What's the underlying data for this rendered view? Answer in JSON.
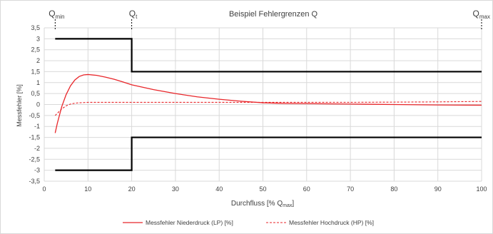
{
  "chart_data": {
    "type": "line",
    "title": "Beispiel Fehlergrenzen Q",
    "xlabel": {
      "main": "Durchfluss [% Q",
      "sub": "max",
      "end": "]"
    },
    "ylabel": "Messfehler [%]",
    "xlim": [
      0,
      100
    ],
    "ylim": [
      -3.5,
      3.5
    ],
    "xticks": [
      0,
      10,
      20,
      30,
      40,
      50,
      60,
      70,
      80,
      90,
      100
    ],
    "yticks": [
      3.5,
      3,
      2.5,
      2,
      1.5,
      1,
      0.5,
      0,
      -0.5,
      -1,
      -1.5,
      -2,
      -2.5,
      -3,
      -3.5
    ],
    "ytick_labels": [
      "3,5",
      "3",
      "2,5",
      "2",
      "1,5",
      "1",
      "0,5",
      "0",
      "-0,5",
      "-1",
      "-1,5",
      "-2",
      "-2,5",
      "-3",
      "-3,5"
    ],
    "grid": true,
    "legend_position": "bottom",
    "markers": [
      {
        "base": "Q",
        "sub": "min",
        "x": 2.5
      },
      {
        "base": "Q",
        "sub": "t",
        "x": 20
      },
      {
        "base": "Q",
        "sub": "max",
        "x": 100
      }
    ],
    "limits": [
      {
        "x": [
          2.5,
          20,
          20,
          100
        ],
        "y": [
          3,
          3,
          1.5,
          1.5
        ],
        "color": "#000000"
      },
      {
        "x": [
          2.5,
          20,
          20,
          100
        ],
        "y": [
          -3,
          -3,
          -1.5,
          -1.5
        ],
        "color": "#000000"
      }
    ],
    "series": [
      {
        "name": "Messfehler Niederdruck (LP) [%]",
        "style": "solid",
        "color": "#e8262a",
        "x": [
          2.5,
          3,
          4,
          5,
          6,
          7,
          8,
          9,
          10,
          12,
          14,
          16,
          18,
          20,
          25,
          30,
          35,
          40,
          45,
          50,
          55,
          60,
          70,
          80,
          90,
          100
        ],
        "y": [
          -1.3,
          -0.85,
          -0.1,
          0.45,
          0.85,
          1.12,
          1.28,
          1.35,
          1.37,
          1.33,
          1.25,
          1.15,
          1.03,
          0.9,
          0.68,
          0.5,
          0.35,
          0.24,
          0.15,
          0.08,
          0.05,
          0.04,
          0.02,
          0.0,
          -0.02,
          -0.03
        ]
      },
      {
        "name": "Messfehler Hochdruck (HP) [%]",
        "style": "dashed",
        "color": "#e8262a",
        "x": [
          2.5,
          3,
          4,
          5,
          6,
          7,
          8,
          10,
          12,
          15,
          20,
          30,
          40,
          50,
          60,
          70,
          80,
          90,
          100
        ],
        "y": [
          -0.5,
          -0.4,
          -0.2,
          -0.06,
          0.02,
          0.06,
          0.08,
          0.1,
          0.1,
          0.1,
          0.1,
          0.1,
          0.1,
          0.1,
          0.1,
          0.1,
          0.11,
          0.12,
          0.14
        ]
      }
    ]
  }
}
